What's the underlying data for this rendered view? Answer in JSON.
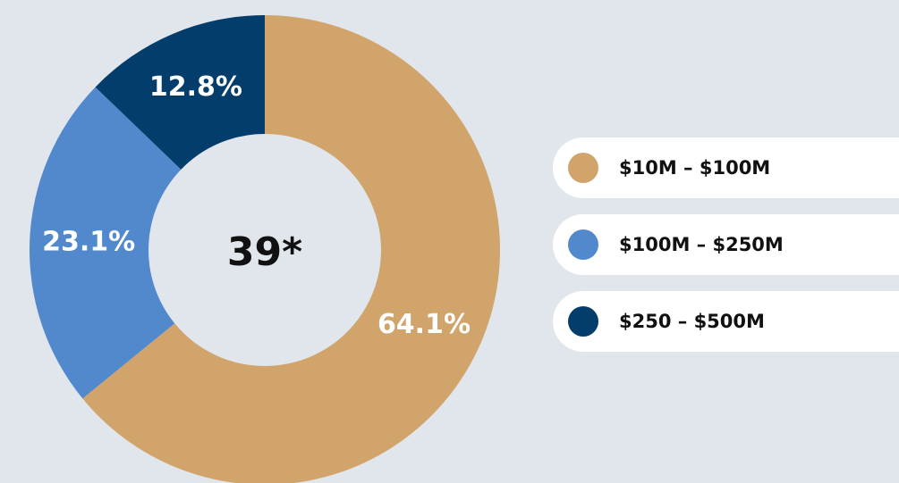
{
  "chart_data": {
    "type": "donut",
    "center_label": "39*",
    "categories": [
      "$10M – $100M",
      "$100M – $250M",
      "$250 – $500M"
    ],
    "values": [
      64.1,
      23.1,
      12.8
    ],
    "value_labels": [
      "64.1%",
      "23.1%",
      "12.8%"
    ],
    "colors": [
      "#d1a46b",
      "#5289cc",
      "#033d6b"
    ],
    "legend": "right"
  }
}
